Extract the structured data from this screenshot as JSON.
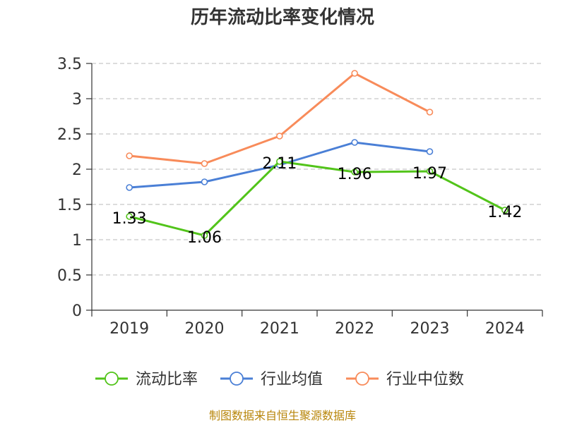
{
  "chart_data": {
    "type": "line",
    "title": "历年流动比率变化情况",
    "xlabel": "",
    "ylabel": "",
    "categories": [
      "2019",
      "2020",
      "2021",
      "2022",
      "2023",
      "2024"
    ],
    "ylim": [
      0,
      3.5
    ],
    "yticks": [
      "0",
      "0.5",
      "1",
      "1.5",
      "2",
      "2.5",
      "3",
      "3.5"
    ],
    "grid": true,
    "legend_position": "bottom",
    "series": [
      {
        "name": "流动比率",
        "color": "#52c41a",
        "values": [
          1.33,
          1.06,
          2.11,
          1.96,
          1.97,
          1.42
        ],
        "labels": [
          "1.33",
          "1.06",
          "2.11",
          "1.96",
          "1.97",
          "1.42"
        ]
      },
      {
        "name": "行业均值",
        "color": "#4a7fd6",
        "values": [
          1.74,
          1.82,
          2.06,
          2.38,
          2.25,
          null
        ]
      },
      {
        "name": "行业中位数",
        "color": "#f88b5a",
        "values": [
          2.19,
          2.08,
          2.47,
          3.36,
          2.81,
          null
        ]
      }
    ]
  },
  "source_note": "制图数据来自恒生聚源数据库"
}
